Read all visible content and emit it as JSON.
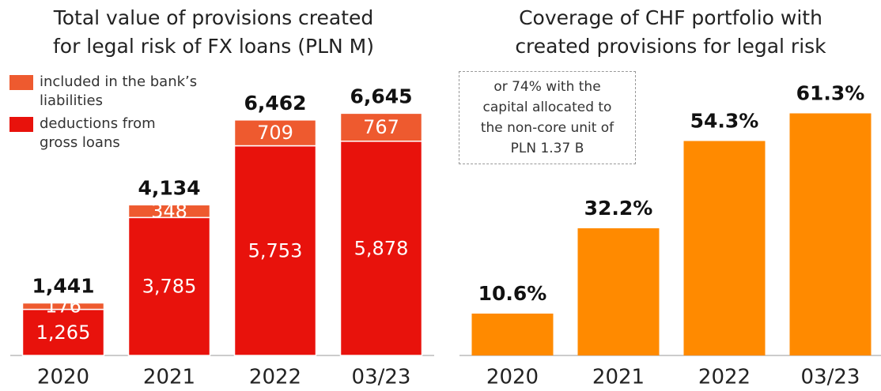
{
  "chart_data": [
    {
      "type": "stacked_bar",
      "title": [
        "Total value of provisions created",
        "for legal risk of FX loans (PLN M)"
      ],
      "categories": [
        "2020",
        "2021",
        "2022",
        "03/23"
      ],
      "series": [
        {
          "name": "deductions from gross loans",
          "color": "#e8120c",
          "values": [
            1265,
            3785,
            5753,
            5878
          ],
          "value_labels": [
            "1,265",
            "3,785",
            "5,753",
            "5,878"
          ]
        },
        {
          "name": "included in the bank’s liabilities",
          "color": "#ee5a2f",
          "values": [
            176,
            348,
            709,
            767
          ]
        }
      ],
      "total_labels": [
        "1,441",
        "4,134",
        "6,462",
        "6,645"
      ],
      "ylim": [
        0,
        7000
      ]
    },
    {
      "type": "bar",
      "title": [
        "Coverage of CHF portfolio with",
        "created provisions for legal risk"
      ],
      "categories": [
        "2020",
        "2021",
        "2022",
        "03/23"
      ],
      "values": [
        10.6,
        32.2,
        54.3,
        61.3
      ],
      "value_labels": [
        "10.6%",
        "32.2%",
        "54.3%",
        "61.3%"
      ],
      "color": "#ff8a00",
      "ylim": [
        0,
        65
      ],
      "annotation": "or 74% with the capital allocated to the non-core unit of PLN 1.37 B"
    }
  ]
}
